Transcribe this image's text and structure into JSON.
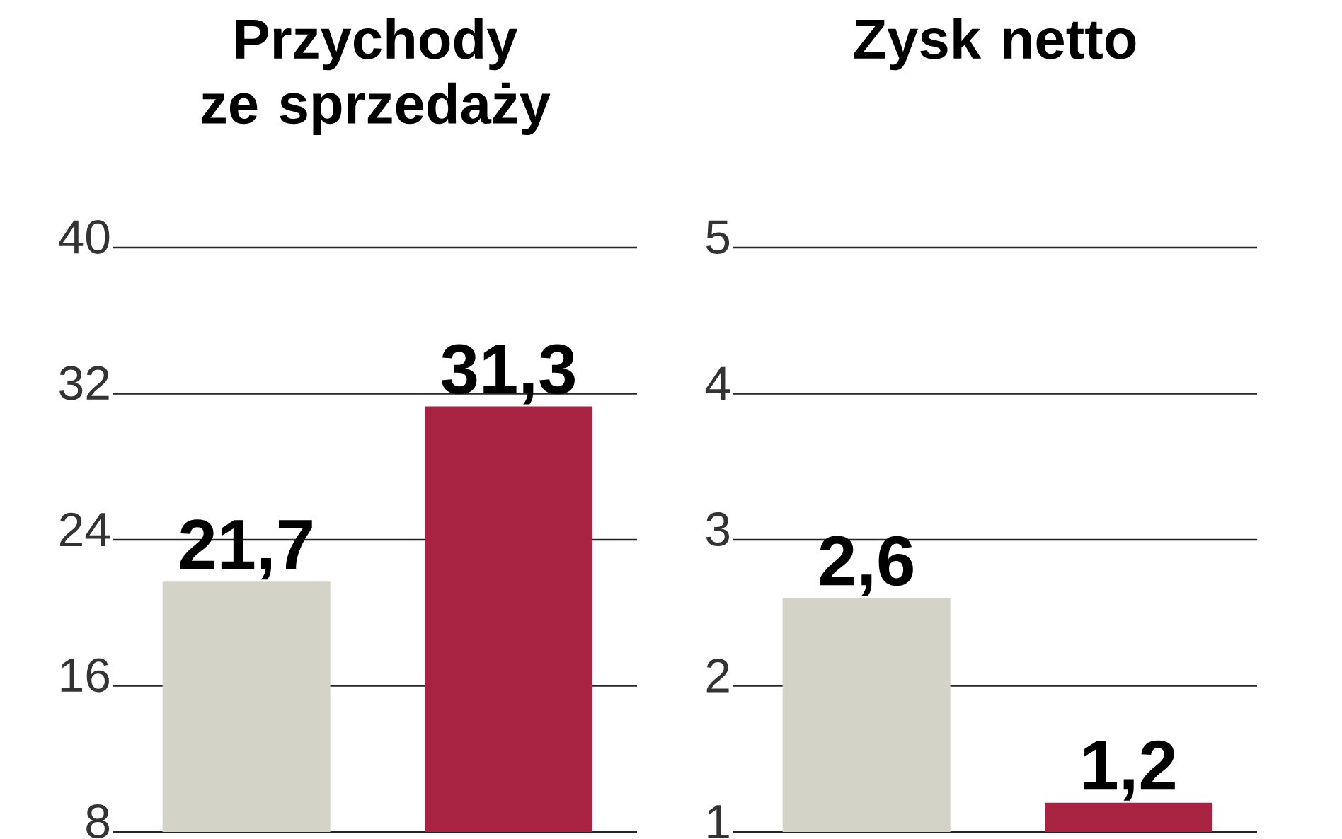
{
  "chart_data": [
    {
      "type": "bar",
      "title": "Przychody ze sprzedaży",
      "categories": [
        null,
        null
      ],
      "values": [
        21.7,
        31.3
      ],
      "colors": [
        "#d3d3c7",
        "#a82342"
      ],
      "value_labels": [
        "21,7",
        "31,3"
      ],
      "ylim": [
        8,
        40
      ],
      "yticks": [
        8,
        16,
        24,
        32,
        40
      ],
      "grid": "y"
    },
    {
      "type": "bar",
      "title": "Zysk netto",
      "categories": [
        null,
        null
      ],
      "values": [
        2.6,
        1.2
      ],
      "colors": [
        "#d3d3c7",
        "#a82342"
      ],
      "value_labels": [
        "2,6",
        "1,2"
      ],
      "ylim": [
        1,
        5
      ],
      "yticks": [
        1,
        2,
        3,
        4,
        5
      ],
      "grid": "y"
    }
  ]
}
